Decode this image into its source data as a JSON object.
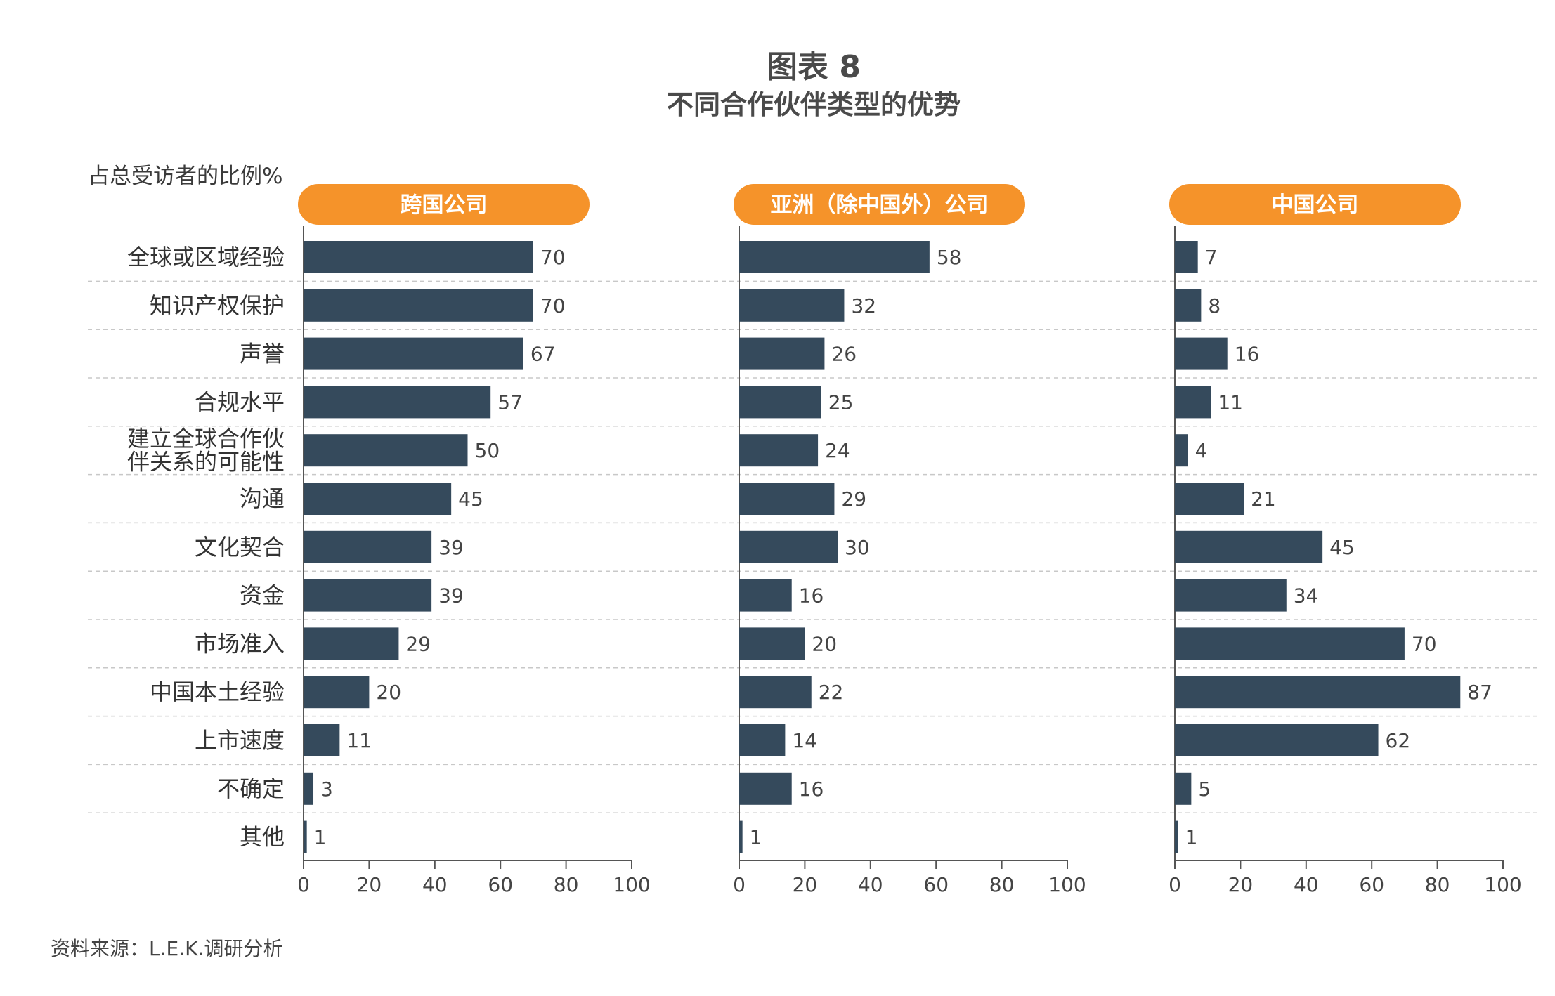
{
  "header": {
    "title": "图表 8",
    "subtitle": "不同合作伙伴类型的优势"
  },
  "footer": {
    "source": "资料来源：L.E.K.调研分析"
  },
  "colors": {
    "bar": "#354a5c",
    "panel_header": "#f5932a",
    "grid": "#c8c8c8",
    "axis": "#555555"
  },
  "chart_data": {
    "type": "bar",
    "orientation": "horizontal",
    "ylabel": "占总受访者的比例%",
    "categories": [
      [
        "全球或区域经验"
      ],
      [
        "知识产权保护"
      ],
      [
        "声誉"
      ],
      [
        "合规水平"
      ],
      [
        "建立全球合作伙",
        "伴关系的可能性"
      ],
      [
        "沟通"
      ],
      [
        "文化契合"
      ],
      [
        "资金"
      ],
      [
        "市场准入"
      ],
      [
        "中国本土经验"
      ],
      [
        "上市速度"
      ],
      [
        "不确定"
      ],
      [
        "其他"
      ]
    ],
    "xlim": [
      0,
      100
    ],
    "xticks": [
      0,
      20,
      40,
      60,
      80,
      100
    ],
    "series": [
      {
        "name": "跨国公司",
        "values": [
          70,
          70,
          67,
          57,
          50,
          45,
          39,
          39,
          29,
          20,
          11,
          3,
          1
        ]
      },
      {
        "name": "亚洲（除中国外）公司",
        "values": [
          58,
          32,
          26,
          25,
          24,
          29,
          30,
          16,
          20,
          22,
          14,
          16,
          1
        ]
      },
      {
        "name": "中国公司",
        "values": [
          7,
          8,
          16,
          11,
          4,
          21,
          45,
          34,
          70,
          87,
          62,
          5,
          1
        ]
      }
    ]
  }
}
